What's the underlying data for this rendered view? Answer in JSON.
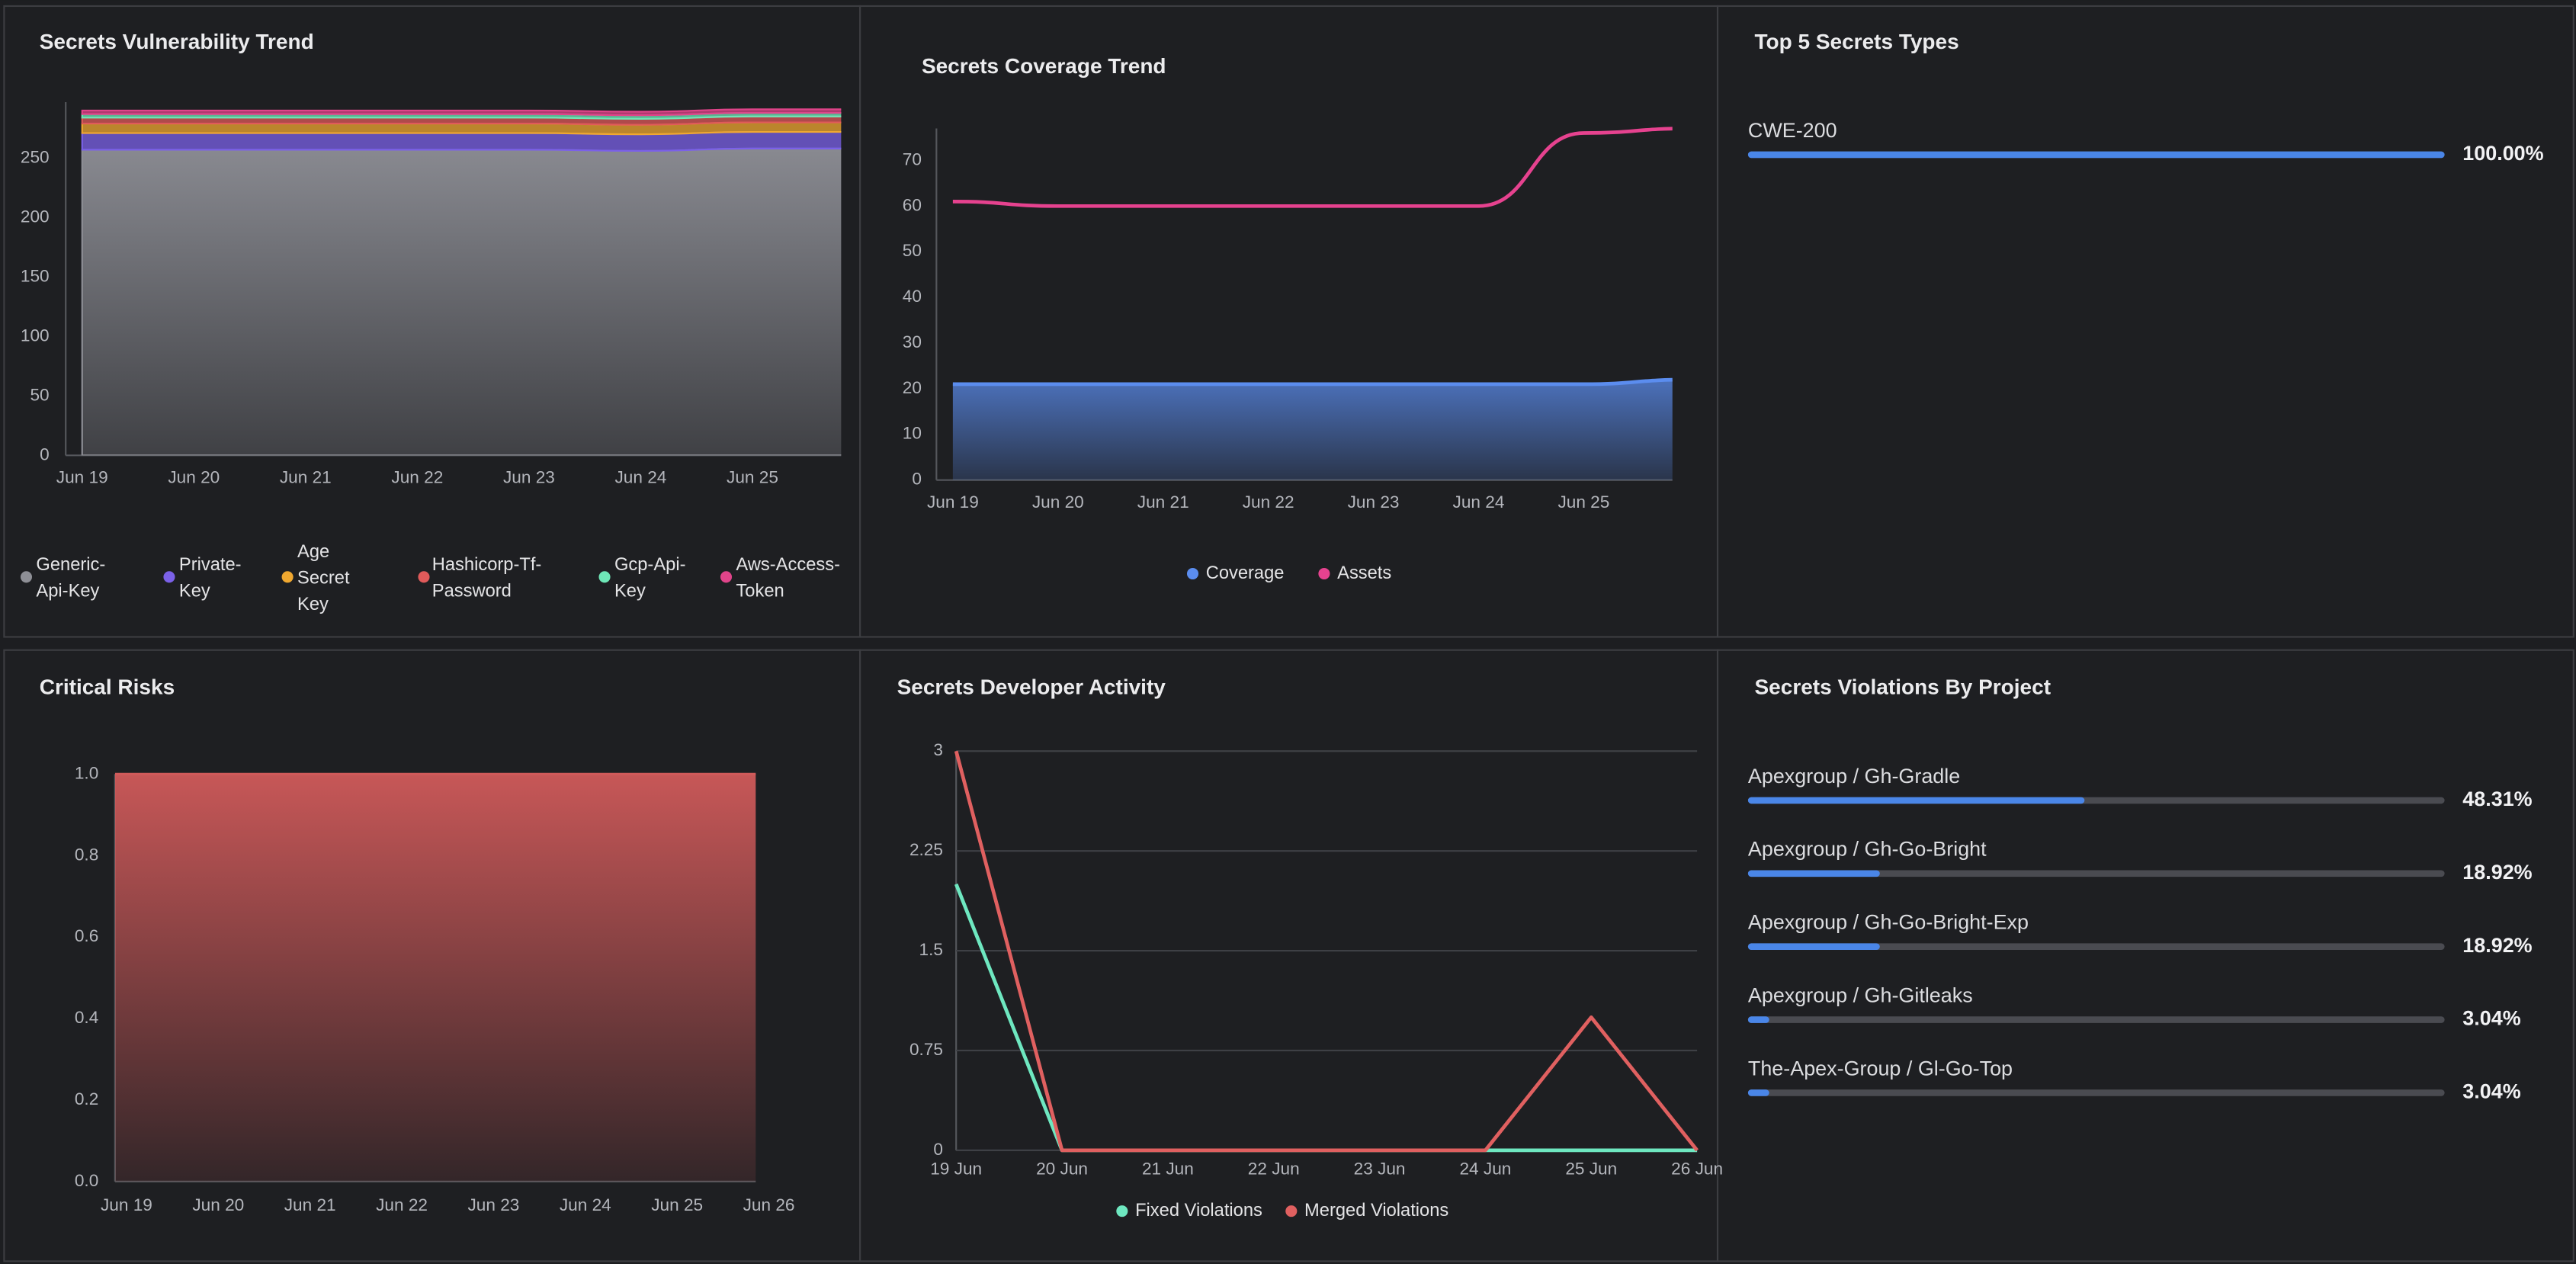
{
  "chart_data": [
    {
      "type": "stacked_area",
      "title": "Secrets Vulnerability Trend",
      "categories": [
        "Jun 19",
        "Jun 20",
        "Jun 21",
        "Jun 22",
        "Jun 23",
        "Jun 24",
        "Jun 25",
        null
      ],
      "ylim": [
        0,
        297
      ],
      "yticks": [
        0,
        50,
        100,
        150,
        200,
        250
      ],
      "series": [
        {
          "name": "Generic-Api-Key",
          "color": "#8e8f96",
          "values": [
            257,
            257,
            257,
            257,
            257,
            256,
            258,
            258
          ]
        },
        {
          "name": "Private-Key",
          "color": "#7b61e8",
          "values": [
            14,
            14,
            14,
            14,
            14,
            14,
            14,
            14
          ]
        },
        {
          "name": "Age Secret Key",
          "color": "#f0a830",
          "values": [
            8,
            8,
            8,
            8,
            8,
            8,
            8,
            8
          ]
        },
        {
          "name": "Hashicorp-Tf-Password",
          "color": "#e05a5a",
          "values": [
            5,
            5,
            5,
            5,
            5,
            5,
            5,
            5
          ]
        },
        {
          "name": "Gcp-Api-Key",
          "color": "#6ee7b7",
          "values": [
            3,
            3,
            3,
            3,
            3,
            3,
            3,
            3
          ]
        },
        {
          "name": "Aws-Access-Token",
          "color": "#e0448a",
          "values": [
            3,
            3,
            3,
            3,
            3,
            3,
            3,
            3
          ]
        }
      ]
    },
    {
      "type": "line",
      "title": "Secrets Coverage Trend",
      "categories": [
        "Jun 19",
        "Jun 20",
        "Jun 21",
        "Jun 22",
        "Jun 23",
        "Jun 24",
        "Jun 25",
        null
      ],
      "ylim": [
        0,
        77
      ],
      "yticks": [
        0,
        10,
        20,
        30,
        40,
        50,
        60,
        70
      ],
      "series": [
        {
          "name": "Coverage",
          "color": "#5b8def",
          "fill": true,
          "values": [
            21,
            21,
            21,
            21,
            21,
            21,
            21,
            22
          ]
        },
        {
          "name": "Assets",
          "color": "#e6428f",
          "values": [
            61,
            60,
            60,
            60,
            60,
            60,
            76,
            77
          ]
        }
      ]
    },
    {
      "type": "progress",
      "title": "Top 5 Secrets Types",
      "categories": [
        "CWE-200"
      ],
      "values": [
        100
      ],
      "value_labels": [
        "100.00%"
      ],
      "xlim": [
        0,
        100
      ],
      "color": "#4a86e8"
    },
    {
      "type": "area",
      "title": "Critical Risks",
      "categories": [
        "Jun 19",
        "Jun 20",
        "Jun 21",
        "Jun 22",
        "Jun 23",
        "Jun 24",
        "Jun 25",
        "Jun 26"
      ],
      "values": [
        1,
        1,
        1,
        1,
        1,
        1,
        1,
        1
      ],
      "color": "#d05a5a",
      "ylim": [
        0,
        1
      ],
      "yticks": [
        {
          "value": 0,
          "label": "0.0"
        },
        0.2,
        0.4,
        0.6,
        0.8,
        {
          "value": 1,
          "label": "1.0"
        }
      ]
    },
    {
      "type": "line",
      "title": "Secrets Developer Activity",
      "categories": [
        "19 Jun",
        "20 Jun",
        "21 Jun",
        "22 Jun",
        "23 Jun",
        "24 Jun",
        "25 Jun",
        "26 Jun"
      ],
      "ylim": [
        0,
        3
      ],
      "yticks": [
        0,
        0.75,
        1.5,
        2.25,
        3
      ],
      "grid": true,
      "straight": true,
      "series": [
        {
          "name": "Fixed Violations",
          "color": "#6ee7c0",
          "values": [
            2,
            0,
            0,
            0,
            0,
            0,
            0,
            0
          ]
        },
        {
          "name": "Merged Violations",
          "color": "#e06060",
          "values": [
            3,
            0,
            0,
            0,
            0,
            0,
            1,
            0
          ]
        }
      ]
    },
    {
      "type": "progress",
      "title": "Secrets Violations By Project",
      "categories": [
        "Apexgroup / Gh-Gradle",
        "Apexgroup / Gh-Go-Bright",
        "Apexgroup / Gh-Go-Bright-Exp",
        "Apexgroup / Gh-Gitleaks",
        "The-Apex-Group / Gl-Go-Top"
      ],
      "values": [
        48.31,
        18.92,
        18.92,
        3.04,
        3.04
      ],
      "value_labels": [
        "48.31%",
        "18.92%",
        "18.92%",
        "3.04%",
        "3.04%"
      ],
      "xlim": [
        0,
        100
      ],
      "color": "#4a86e8"
    }
  ]
}
